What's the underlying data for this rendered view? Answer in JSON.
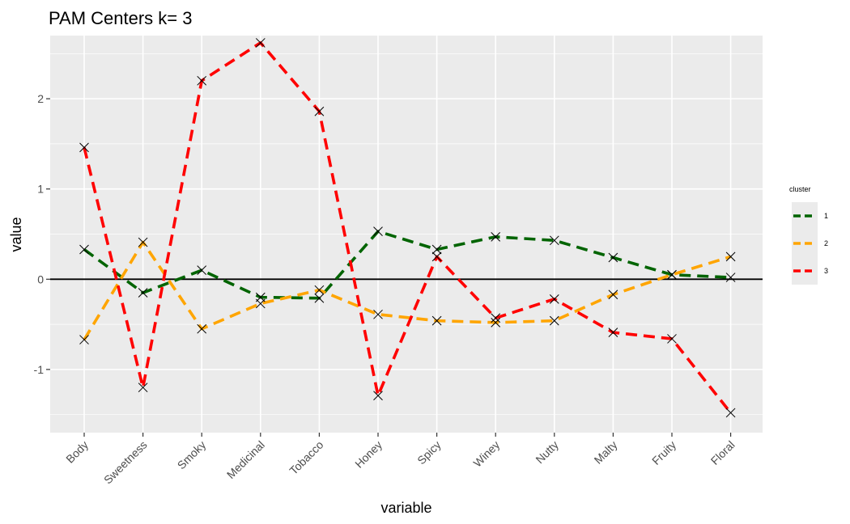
{
  "chart_data": {
    "type": "line",
    "title": "PAM Centers k= 3",
    "xlabel": "variable",
    "ylabel": "value",
    "categories": [
      "Body",
      "Sweetness",
      "Smoky",
      "Medicinal",
      "Tobacco",
      "Honey",
      "Spicy",
      "Winey",
      "Nutty",
      "Malty",
      "Fruity",
      "Floral"
    ],
    "yticks": [
      "-1",
      "0",
      "1",
      "2"
    ],
    "ylim": [
      -1.7,
      2.7
    ],
    "hline": 0,
    "grid": true,
    "legend": {
      "title": "cluster",
      "position": "right"
    },
    "series": [
      {
        "name": "1",
        "color": "#006400",
        "values": [
          0.33,
          -0.15,
          0.1,
          -0.2,
          -0.21,
          0.53,
          0.33,
          0.47,
          0.43,
          0.24,
          0.05,
          0.02
        ]
      },
      {
        "name": "2",
        "color": "#FFA500",
        "values": [
          -0.67,
          0.41,
          -0.55,
          -0.27,
          -0.12,
          -0.39,
          -0.46,
          -0.48,
          -0.46,
          -0.17,
          0.05,
          0.25
        ]
      },
      {
        "name": "3",
        "color": "#FF0000",
        "values": [
          1.46,
          -1.2,
          2.2,
          2.62,
          1.86,
          -1.29,
          0.25,
          -0.43,
          -0.22,
          -0.59,
          -0.66,
          -1.48
        ]
      }
    ]
  }
}
